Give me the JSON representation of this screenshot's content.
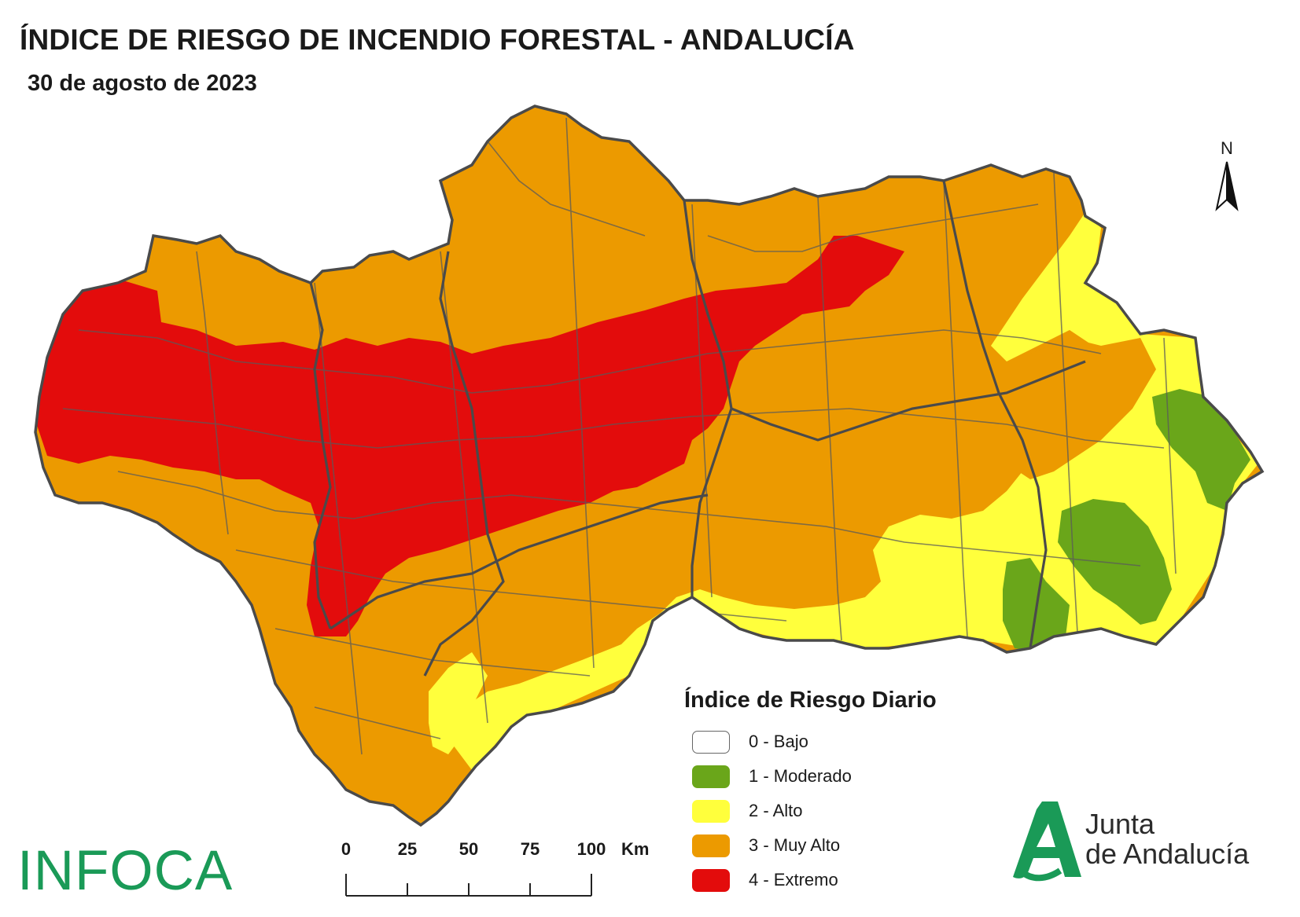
{
  "header": {
    "title": "ÍNDICE DE RIESGO DE INCENDIO FORESTAL - ANDALUCÍA",
    "date": "30 de agosto de 2023"
  },
  "compass": {
    "label": "N"
  },
  "legend": {
    "title": "Índice de Riesgo Diario",
    "items": [
      {
        "label": "0 - Bajo",
        "color": "#ffffff"
      },
      {
        "label": "1 - Moderado",
        "color": "#6aa61a"
      },
      {
        "label": "2 - Alto",
        "color": "#ffff3c"
      },
      {
        "label": "3 - Muy Alto",
        "color": "#ec9a00"
      },
      {
        "label": "4 - Extremo",
        "color": "#e30c0c"
      }
    ]
  },
  "scale": {
    "ticks": [
      "0",
      "25",
      "50",
      "75",
      "100"
    ],
    "unit": "Km"
  },
  "logos": {
    "infoca": "INFOCA",
    "junta_line1": "Junta",
    "junta_line2": "de Andalucía"
  }
}
